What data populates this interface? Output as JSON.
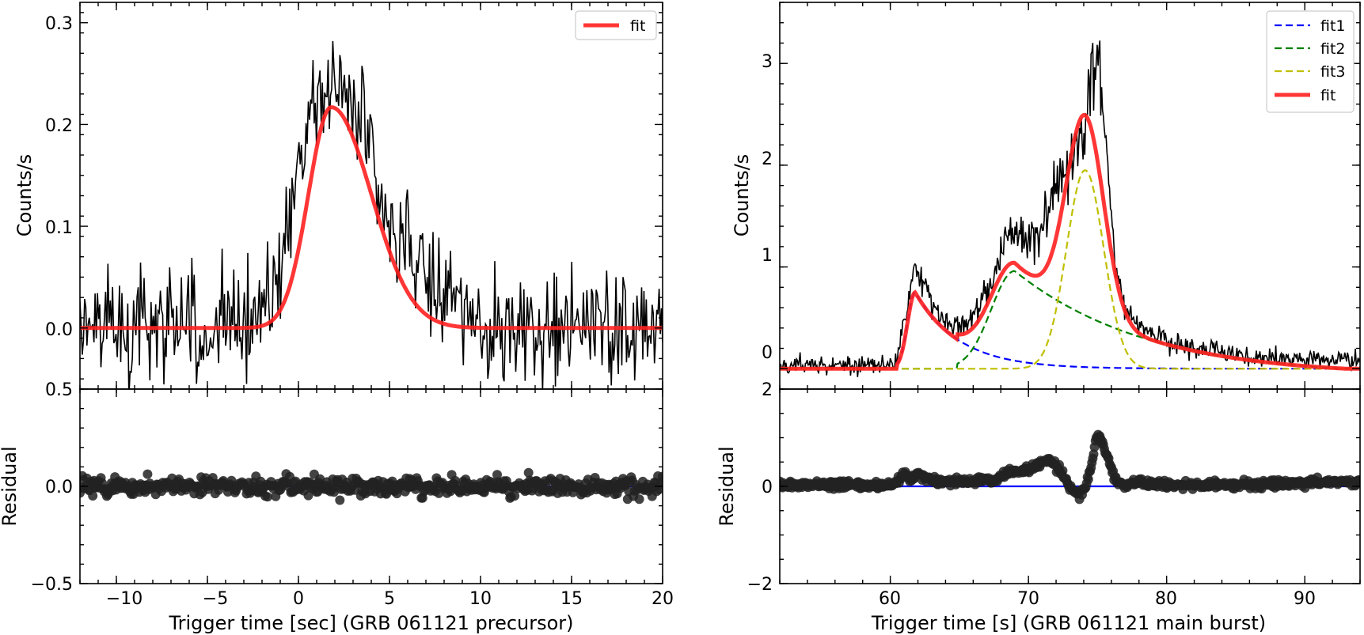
{
  "chart_data": [
    {
      "type": "line",
      "panel": "left-top",
      "xlabel": "Trigger time [sec] (GRB 061121 precursor)",
      "ylabel": "Counts/s",
      "xlim": [
        -12,
        20
      ],
      "ylim": [
        -0.06,
        0.32
      ],
      "xticks": [
        -10,
        -5,
        0,
        5,
        10,
        15,
        20
      ],
      "xtick_labels": [
        "−10",
        "−5",
        "0",
        "5",
        "10",
        "15",
        "20"
      ],
      "yticks": [
        0.0,
        0.1,
        0.2,
        0.3
      ],
      "ytick_labels": [
        "0.0",
        "0.1",
        "0.2",
        "0.3"
      ],
      "legend_position": "top-right",
      "series": [
        {
          "role": "data",
          "color": "#000000",
          "x_start": -12,
          "x_step": 0.064,
          "envelope_points": [
            [
              -12,
              0.0
            ],
            [
              -3,
              0.0
            ],
            [
              -1,
              0.05
            ],
            [
              0,
              0.15
            ],
            [
              1,
              0.22
            ],
            [
              2,
              0.24
            ],
            [
              3,
              0.23
            ],
            [
              4,
              0.17
            ],
            [
              5,
              0.1
            ],
            [
              7,
              0.05
            ],
            [
              10,
              0.0
            ],
            [
              20,
              0.0
            ]
          ],
          "noise_sigma": 0.028
        },
        {
          "role": "fit",
          "name": "fit",
          "color": "#ff0000",
          "x_peak": 1.8,
          "peak": 0.217,
          "t_start": -3.0,
          "rise": 1.25,
          "decay": 2.2
        }
      ]
    },
    {
      "type": "scatter",
      "panel": "left-bottom",
      "ylabel": "Residual",
      "xlim": [
        -12,
        20
      ],
      "ylim": [
        -0.5,
        0.5
      ],
      "yticks": [
        -0.5,
        0.0,
        0.5
      ],
      "ytick_labels": [
        "−0.5",
        "0.0",
        "0.5"
      ],
      "zero_line_color": "#0000ff",
      "residual_sigma": 0.028
    },
    {
      "type": "line",
      "panel": "right-top",
      "xlabel": "Trigger time [s] (GRB 061121 main burst)",
      "ylabel": "Counts/s",
      "xlim": [
        52,
        94
      ],
      "ylim": [
        -0.2,
        3.6
      ],
      "xticks": [
        60,
        70,
        80,
        90
      ],
      "xtick_labels": [
        "60",
        "70",
        "80",
        "90"
      ],
      "yticks": [
        0,
        1,
        2,
        3
      ],
      "ytick_labels": [
        "0",
        "1",
        "2",
        "3"
      ],
      "legend_position": "top-right",
      "series": [
        {
          "role": "data",
          "color": "#000000",
          "x_start": 52,
          "x_step": 0.064,
          "envelope_points": [
            [
              52,
              0.03
            ],
            [
              60.4,
              0.03
            ],
            [
              61.0,
              0.5
            ],
            [
              61.8,
              1.0
            ],
            [
              62.6,
              0.75
            ],
            [
              63.5,
              0.55
            ],
            [
              64.6,
              0.4
            ],
            [
              66.0,
              0.5
            ],
            [
              67.5,
              0.9
            ],
            [
              68.5,
              1.35
            ],
            [
              69.6,
              1.3
            ],
            [
              70.5,
              1.3
            ],
            [
              71.5,
              1.6
            ],
            [
              72.5,
              1.85
            ],
            [
              73.3,
              2.1
            ],
            [
              74.3,
              2.55
            ],
            [
              75.0,
              3.2
            ],
            [
              75.6,
              2.2
            ],
            [
              76.3,
              1.0
            ],
            [
              77.0,
              0.55
            ],
            [
              79.0,
              0.32
            ],
            [
              82.0,
              0.2
            ],
            [
              86.0,
              0.12
            ],
            [
              94.0,
              0.08
            ]
          ],
          "noise_sigma": 0.045
        },
        {
          "role": "fit1",
          "name": "fit1",
          "color": "#0000ff",
          "dashed": true,
          "t_start": 60.5,
          "peak_t": 61.8,
          "peak": 0.75,
          "decay": 3.2
        },
        {
          "role": "fit2",
          "name": "fit2",
          "color": "#008000",
          "dashed": true,
          "t_start": 64.8,
          "peak_t": 69.0,
          "peak": 0.96,
          "decay_to": 93.0
        },
        {
          "role": "fit3",
          "name": "fit3",
          "color": "#bfbf00",
          "dashed": true,
          "center": 74.1,
          "peak": 1.95,
          "width": 1.35
        },
        {
          "role": "fit",
          "name": "fit",
          "color": "#ff0000"
        }
      ]
    },
    {
      "type": "scatter",
      "panel": "right-bottom",
      "ylabel": "Residual",
      "xlim": [
        52,
        94
      ],
      "ylim": [
        -2,
        2
      ],
      "yticks": [
        -2,
        0,
        2
      ],
      "ytick_labels": [
        "−2",
        "0",
        "2"
      ],
      "zero_line_color": "#0000ff",
      "residual_sigma": 0.045
    }
  ]
}
